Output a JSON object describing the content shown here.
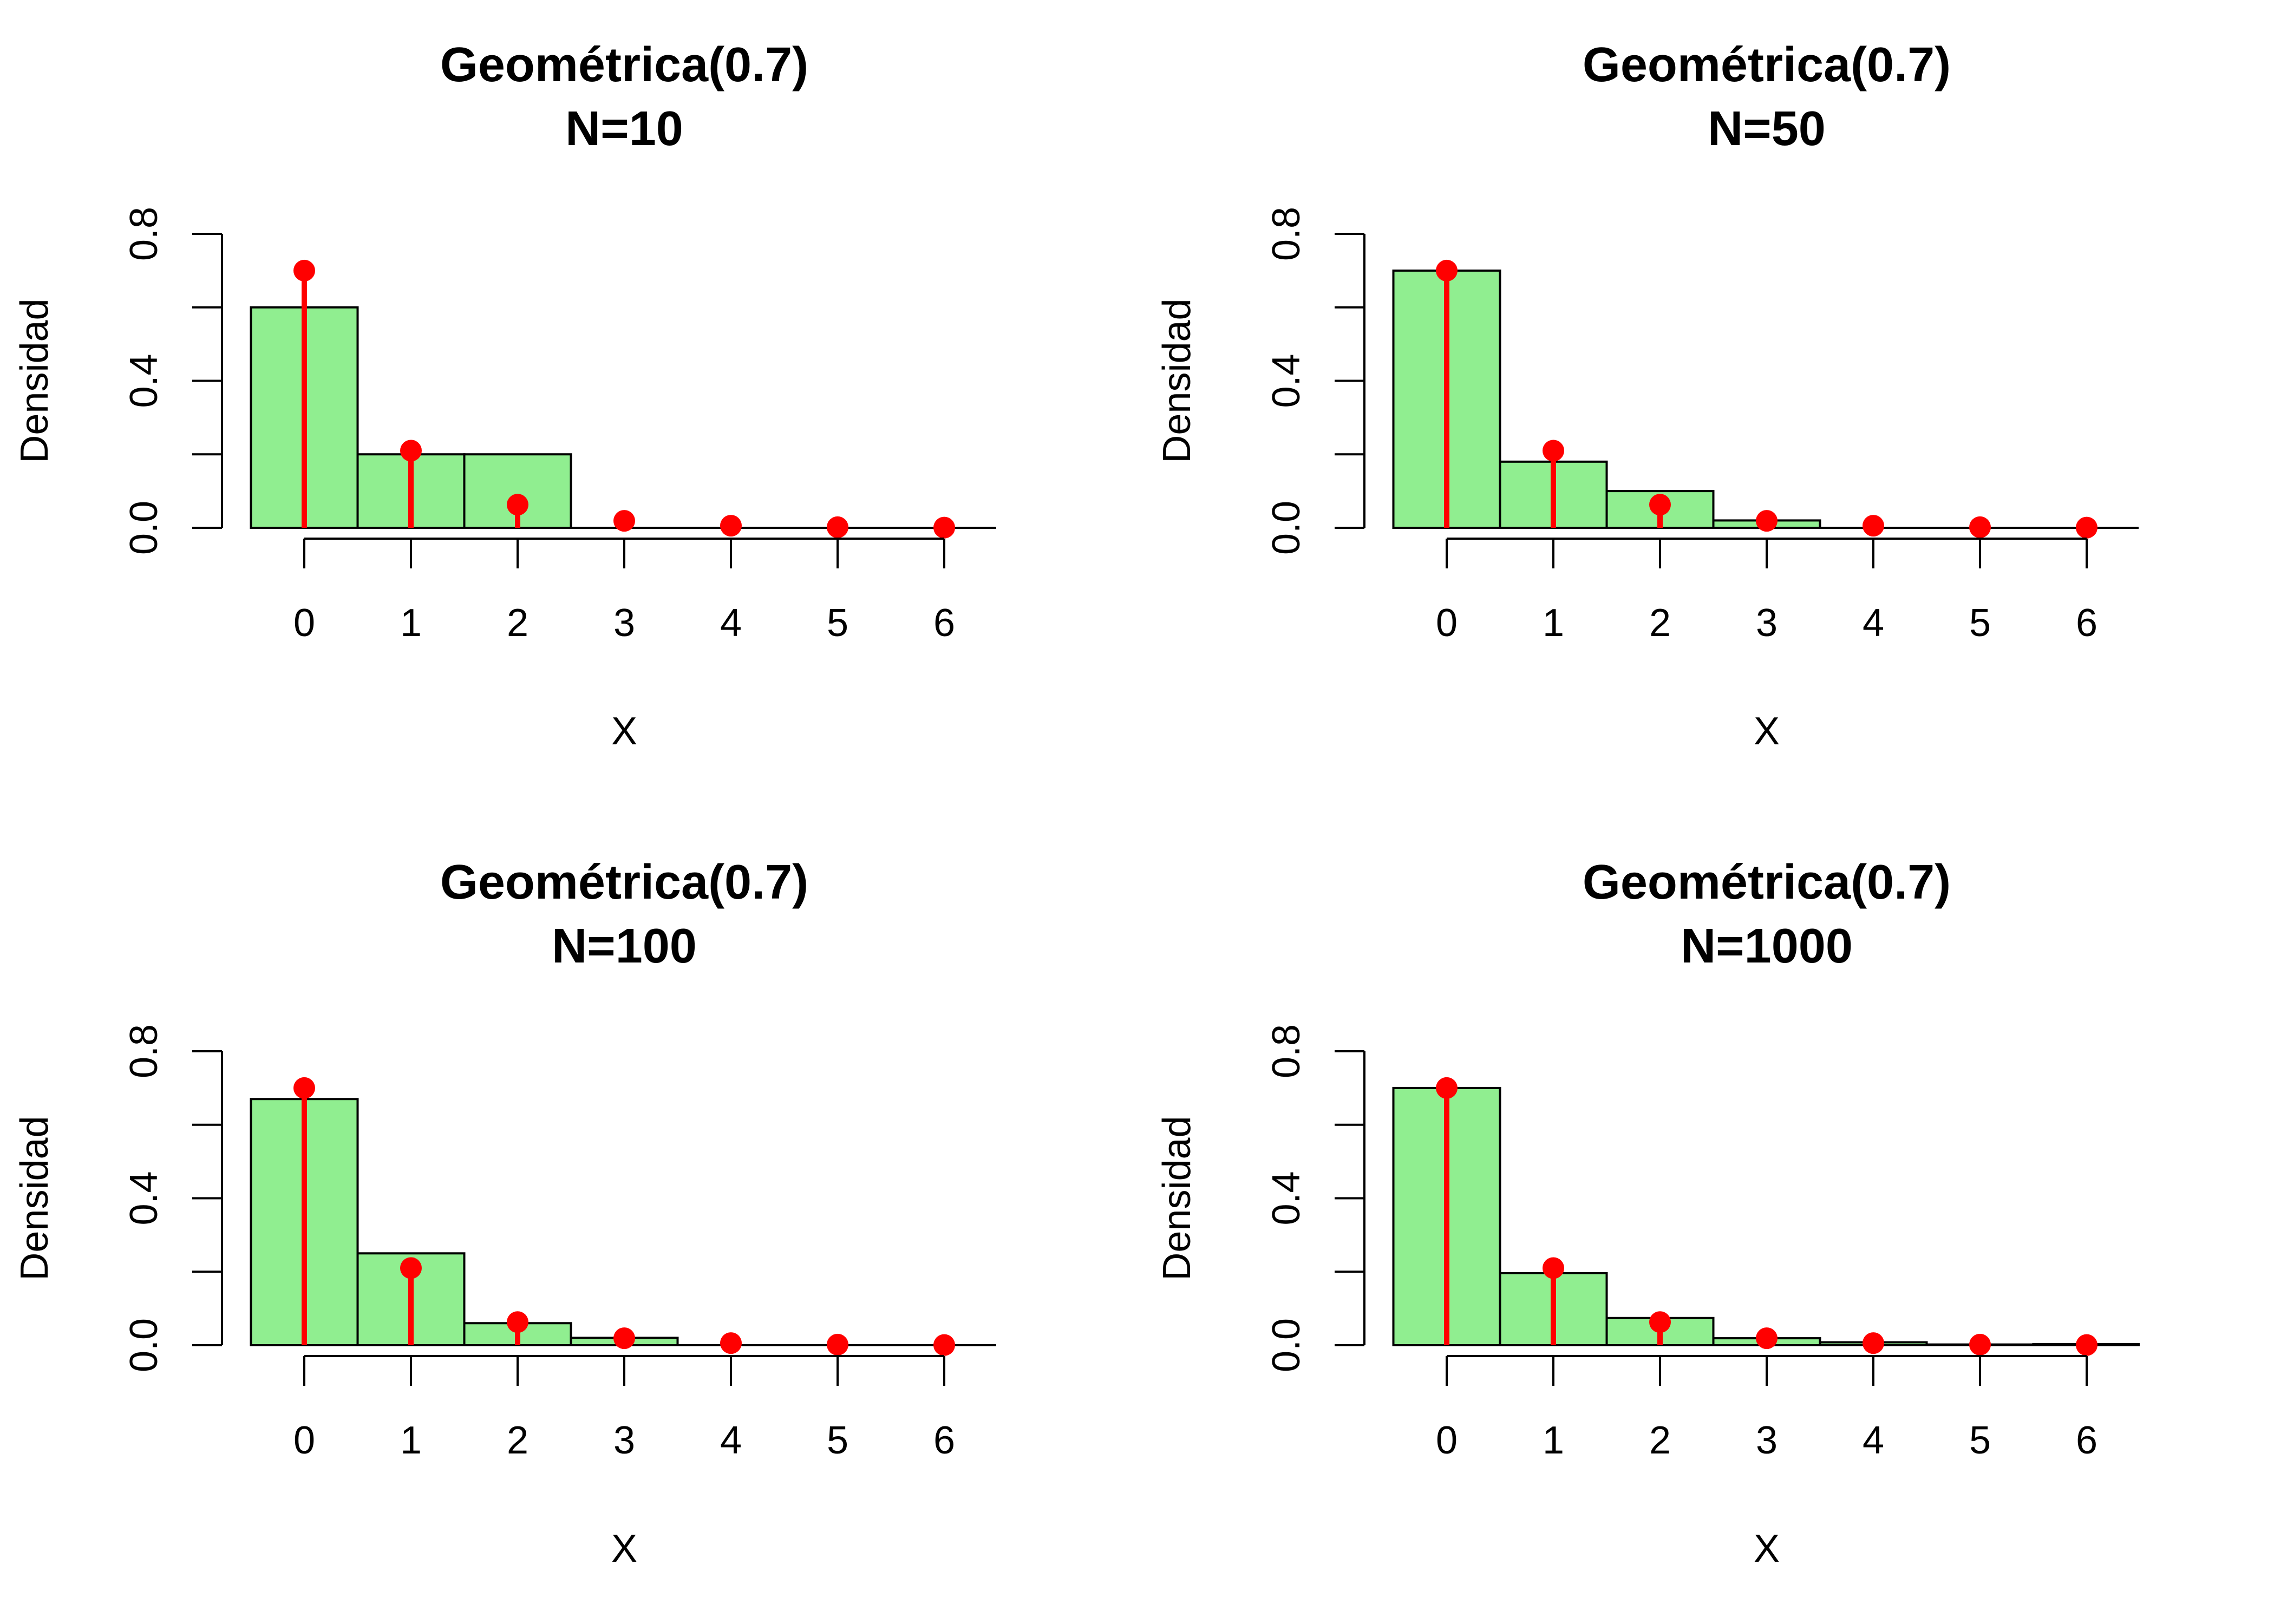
{
  "chart_data": [
    {
      "type": "bar",
      "title": "Geométrica(0.7)",
      "subtitle": "N=10",
      "xlabel": "X",
      "ylabel": "Densidad",
      "ylim": [
        0,
        0.8
      ],
      "yticks": [
        "0.0",
        "0.4",
        "0.8"
      ],
      "xticks": [
        "0",
        "1",
        "2",
        "3",
        "4",
        "5",
        "6"
      ],
      "histogram": {
        "bin_starts": [
          -0.5,
          0.5,
          1.5,
          2.5,
          3.5,
          4.5,
          5.5
        ],
        "bin_width": 1,
        "density": [
          0.6,
          0.2,
          0.2,
          0.0,
          0.0,
          0.0,
          0.0
        ]
      },
      "pmf": {
        "x": [
          0,
          1,
          2,
          3,
          4,
          5,
          6
        ],
        "y": [
          0.7,
          0.21,
          0.063,
          0.019,
          0.0057,
          0.0017,
          0.0005
        ]
      },
      "grid": false
    },
    {
      "type": "bar",
      "title": "Geométrica(0.7)",
      "subtitle": "N=50",
      "xlabel": "X",
      "ylabel": "Densidad",
      "ylim": [
        0,
        0.8
      ],
      "yticks": [
        "0.0",
        "0.4",
        "0.8"
      ],
      "xticks": [
        "0",
        "1",
        "2",
        "3",
        "4",
        "5",
        "6"
      ],
      "histogram": {
        "bin_starts": [
          -0.5,
          0.5,
          1.5,
          2.5,
          3.5,
          4.5,
          5.5
        ],
        "bin_width": 1,
        "density": [
          0.7,
          0.18,
          0.1,
          0.02,
          0.0,
          0.0,
          0.0
        ]
      },
      "pmf": {
        "x": [
          0,
          1,
          2,
          3,
          4,
          5,
          6
        ],
        "y": [
          0.7,
          0.21,
          0.063,
          0.019,
          0.0057,
          0.0017,
          0.0005
        ]
      },
      "grid": false
    },
    {
      "type": "bar",
      "title": "Geométrica(0.7)",
      "subtitle": "N=100",
      "xlabel": "X",
      "ylabel": "Densidad",
      "ylim": [
        0,
        0.8
      ],
      "yticks": [
        "0.0",
        "0.4",
        "0.8"
      ],
      "xticks": [
        "0",
        "1",
        "2",
        "3",
        "4",
        "5",
        "6"
      ],
      "histogram": {
        "bin_starts": [
          -0.5,
          0.5,
          1.5,
          2.5,
          3.5,
          4.5,
          5.5
        ],
        "bin_width": 1,
        "density": [
          0.67,
          0.25,
          0.06,
          0.02,
          0.0,
          0.0,
          0.0
        ]
      },
      "pmf": {
        "x": [
          0,
          1,
          2,
          3,
          4,
          5,
          6
        ],
        "y": [
          0.7,
          0.21,
          0.063,
          0.019,
          0.0057,
          0.0017,
          0.0005
        ]
      },
      "grid": false
    },
    {
      "type": "bar",
      "title": "Geométrica(0.7)",
      "subtitle": "N=1000",
      "xlabel": "X",
      "ylabel": "Densidad",
      "ylim": [
        0,
        0.8
      ],
      "yticks": [
        "0.0",
        "0.4",
        "0.8"
      ],
      "xticks": [
        "0",
        "1",
        "2",
        "3",
        "4",
        "5",
        "6"
      ],
      "histogram": {
        "bin_starts": [
          -0.5,
          0.5,
          1.5,
          2.5,
          3.5,
          4.5,
          5.5
        ],
        "bin_width": 1,
        "density": [
          0.7,
          0.196,
          0.074,
          0.019,
          0.008,
          0.002,
          0.003
        ]
      },
      "pmf": {
        "x": [
          0,
          1,
          2,
          3,
          4,
          5,
          6
        ],
        "y": [
          0.7,
          0.21,
          0.063,
          0.019,
          0.0057,
          0.0017,
          0.0005
        ]
      },
      "grid": false
    }
  ],
  "colors": {
    "bar_fill": "#90EE90",
    "bar_stroke": "#000000",
    "pmf_color": "#FF0000",
    "axis_color": "#000000"
  }
}
